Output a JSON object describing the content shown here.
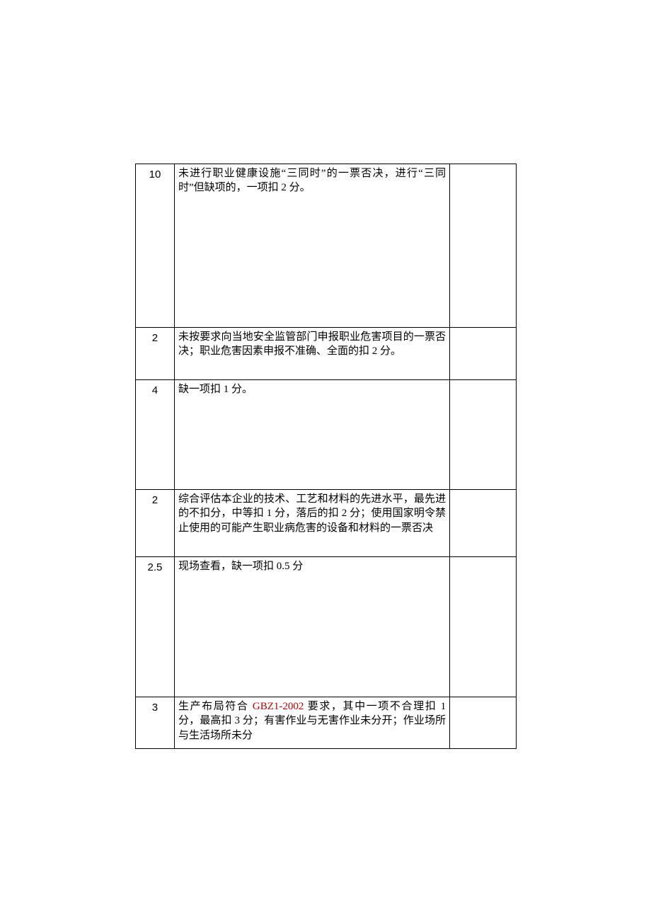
{
  "table": {
    "rows": [
      {
        "num": "10",
        "desc_parts": [
          {
            "text": "未进行职业健康设施“三同时”的一票否决，进行“三同时”但缺项的，一项扣 2 分。",
            "highlight": false
          }
        ]
      },
      {
        "num": "2",
        "desc_parts": [
          {
            "text": "未按要求向当地安全监管部门申报职业危害项目的一票否决；职业危害因素申报不准确、全面的扣 2 分。",
            "highlight": false
          }
        ]
      },
      {
        "num": "4",
        "desc_parts": [
          {
            "text": "缺一项扣 1 分。",
            "highlight": false
          }
        ]
      },
      {
        "num": "2",
        "desc_parts": [
          {
            "text": "综合评估本企业的技术、工艺和材料的先进水平，最先进的不扣分，中等扣 1 分，落后的扣 2 分；使用国家明令禁止使用的可能产生职业病危害的设备和材料的一票否决",
            "highlight": false
          }
        ]
      },
      {
        "num": "2.5",
        "desc_parts": [
          {
            "text": "现场查看，缺一项扣 0.5 分",
            "highlight": false
          }
        ]
      },
      {
        "num": "3",
        "desc_parts": [
          {
            "text": "生产布局符合 ",
            "highlight": false
          },
          {
            "text": "GBZ1-2002",
            "highlight": true
          },
          {
            "text": " 要求，其中一项不合理扣 1 分，最高扣 3 分；有害作业与无害作业未分开；作业场所与生活场所未分",
            "highlight": false
          }
        ]
      }
    ]
  },
  "colors": {
    "highlight": "#c00000",
    "text": "#000000",
    "border": "#000000",
    "background": "#ffffff"
  }
}
